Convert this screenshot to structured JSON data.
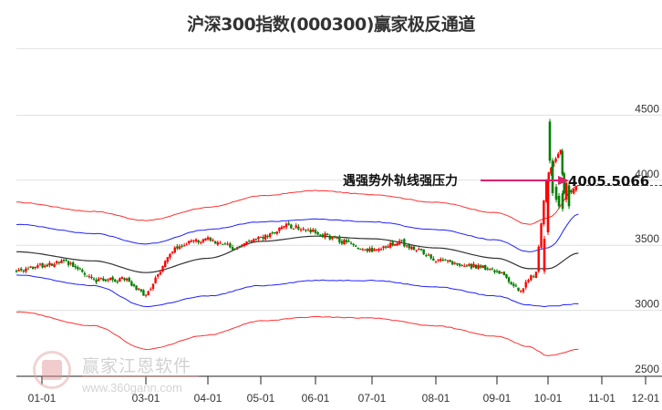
{
  "title": "沪深300指数(000300)赢家极反通道",
  "watermark": {
    "name": "赢家江恩软件",
    "url": "www.360gann.com"
  },
  "annotation": {
    "text": "遇强势外轨线强压力",
    "value": "4005.5066",
    "arrow_color": "#e0206a"
  },
  "colors": {
    "up": "#ff0000",
    "down": "#008000",
    "outer_band": "#ff3030",
    "inner_band": "#2020ff",
    "middle_line": "#333333",
    "grid": "#e0e0e0",
    "dash_line": "#008000"
  },
  "chart_data": {
    "type": "candlestick-channel",
    "title": "沪深300指数(000300)赢家极反通道",
    "xlabel": "",
    "ylabel": "",
    "ylim": [
      2500,
      4600
    ],
    "y_ticks": [
      2500,
      3000,
      3500,
      4000,
      4500
    ],
    "x_ticks": [
      "01-01",
      "03-01",
      "04-01",
      "05-01",
      "06-01",
      "07-01",
      "08-01",
      "09-01",
      "10-01",
      "11-01",
      "12-01"
    ],
    "grid": "horizontal",
    "series": [
      {
        "name": "outer_upper",
        "color": "#ff3030",
        "x": [
          "01-01",
          "02-01",
          "03-01",
          "04-01",
          "05-01",
          "06-01",
          "07-01",
          "08-01",
          "09-01",
          "09-20",
          "10-01",
          "10-18"
        ],
        "values": [
          3830,
          3760,
          3690,
          3790,
          3880,
          3920,
          3890,
          3830,
          3750,
          3660,
          3710,
          3960
        ]
      },
      {
        "name": "inner_upper",
        "color": "#2020ff",
        "x": [
          "01-01",
          "02-01",
          "03-01",
          "04-01",
          "05-01",
          "06-01",
          "07-01",
          "08-01",
          "09-01",
          "09-20",
          "10-01",
          "10-18"
        ],
        "values": [
          3660,
          3590,
          3510,
          3620,
          3680,
          3700,
          3680,
          3620,
          3540,
          3450,
          3480,
          3740
        ]
      },
      {
        "name": "middle",
        "color": "#333333",
        "x": [
          "01-01",
          "02-01",
          "03-01",
          "04-01",
          "05-01",
          "06-01",
          "07-01",
          "08-01",
          "09-01",
          "09-20",
          "10-01",
          "10-18"
        ],
        "values": [
          3450,
          3380,
          3290,
          3400,
          3530,
          3570,
          3550,
          3480,
          3400,
          3320,
          3320,
          3440
        ]
      },
      {
        "name": "inner_lower",
        "color": "#2020ff",
        "x": [
          "01-01",
          "02-01",
          "03-01",
          "04-01",
          "05-01",
          "06-01",
          "07-01",
          "08-01",
          "09-01",
          "09-20",
          "10-01",
          "10-18"
        ],
        "values": [
          3270,
          3190,
          3030,
          3110,
          3190,
          3230,
          3230,
          3180,
          3110,
          3040,
          3030,
          3050
        ]
      },
      {
        "name": "outer_lower",
        "color": "#ff3030",
        "x": [
          "01-01",
          "02-01",
          "03-01",
          "04-01",
          "05-01",
          "06-01",
          "07-01",
          "08-01",
          "09-01",
          "09-20",
          "10-01",
          "10-18"
        ],
        "values": [
          2990,
          2880,
          2700,
          2810,
          2920,
          2950,
          2940,
          2880,
          2800,
          2720,
          2650,
          2700
        ]
      }
    ],
    "close_approx": {
      "x": [
        "01-01",
        "01-15",
        "02-01",
        "02-20",
        "03-01",
        "03-15",
        "04-01",
        "04-15",
        "05-01",
        "05-15",
        "06-01",
        "06-15",
        "07-01",
        "07-15",
        "08-01",
        "08-15",
        "09-01",
        "09-15",
        "09-24",
        "09-30",
        "10-08",
        "10-10",
        "10-18"
      ],
      "values": [
        3310,
        3370,
        3230,
        3240,
        3110,
        3490,
        3550,
        3480,
        3560,
        3650,
        3600,
        3530,
        3460,
        3520,
        3390,
        3350,
        3310,
        3150,
        3300,
        4000,
        4250,
        3880,
        3960
      ]
    },
    "annotations": [
      {
        "text": "遇强势外轨线强压力",
        "value": 4005.5066,
        "x": "10-18"
      }
    ],
    "last_price_dashline": 3960
  }
}
